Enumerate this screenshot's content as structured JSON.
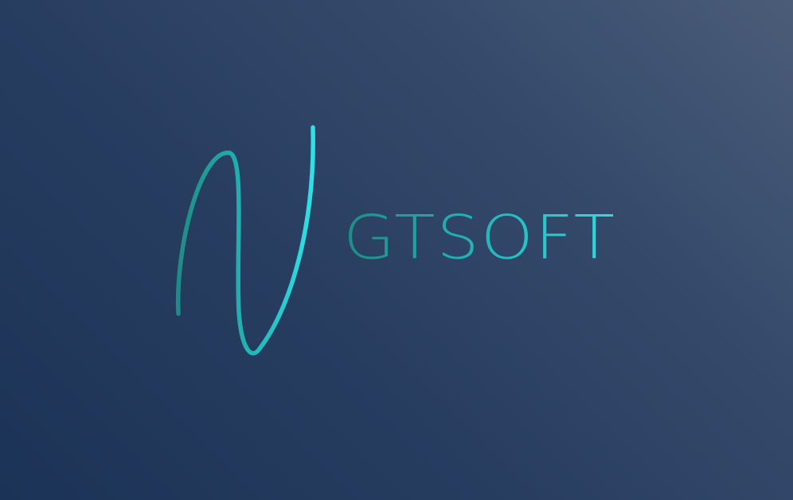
{
  "logo": {
    "brand_name": "GTSOFT",
    "monogram_icon": "script-n-monogram-icon",
    "colors": {
      "background_dark": "#1b3356",
      "background_light": "#4a5c78",
      "accent_dark": "#1e8c86",
      "accent_light": "#2fe0e6"
    }
  }
}
